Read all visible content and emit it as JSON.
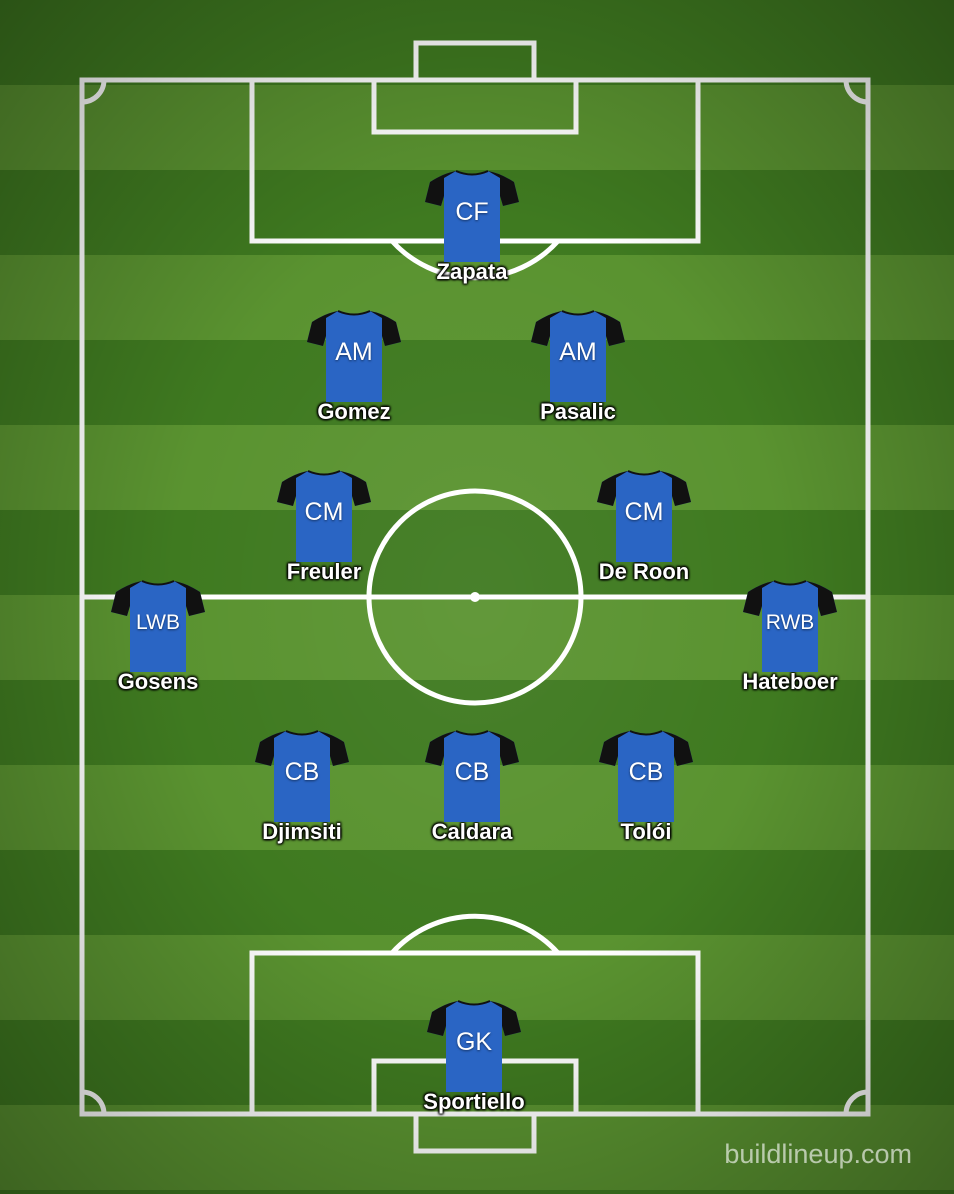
{
  "pitch": {
    "line_color": "#ffffff",
    "stripe_dark": "#3f7a20",
    "stripe_light": "#5a9330"
  },
  "kit": {
    "body_color": "#2a65c4",
    "sleeve_color": "#111111"
  },
  "players": [
    {
      "id": "zapata",
      "position": "CF",
      "name": "Zapata"
    },
    {
      "id": "gomez",
      "position": "AM",
      "name": "Gomez"
    },
    {
      "id": "pasalic",
      "position": "AM",
      "name": "Pasalic"
    },
    {
      "id": "freuler",
      "position": "CM",
      "name": "Freuler"
    },
    {
      "id": "de-roon",
      "position": "CM",
      "name": "De Roon"
    },
    {
      "id": "gosens",
      "position": "LWB",
      "name": "Gosens"
    },
    {
      "id": "hateboer",
      "position": "RWB",
      "name": "Hateboer"
    },
    {
      "id": "djimsiti",
      "position": "CB",
      "name": "Djimsiti"
    },
    {
      "id": "caldara",
      "position": "CB",
      "name": "Caldara"
    },
    {
      "id": "toloi",
      "position": "CB",
      "name": "Tolói"
    },
    {
      "id": "sportiello",
      "position": "GK",
      "name": "Sportiello"
    }
  ],
  "watermark": "buildlineup.com"
}
